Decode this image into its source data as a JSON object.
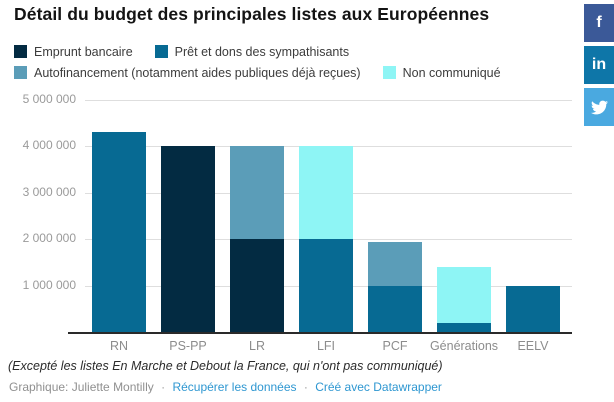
{
  "chart_data": {
    "type": "bar",
    "stacked": true,
    "title": "Détail du budget des principales listes aux Européennes",
    "categories": [
      "RN",
      "PS-PP",
      "LR",
      "LFI",
      "PCF",
      "Générations",
      "EELV"
    ],
    "series": [
      {
        "name": "Emprunt bancaire",
        "color": "#032b42",
        "values": [
          0,
          4000000,
          2000000,
          0,
          0,
          0,
          0
        ]
      },
      {
        "name": "Prêt et dons des sympathisants",
        "color": "#076a93",
        "values": [
          4300000,
          0,
          0,
          2000000,
          1000000,
          200000,
          1000000
        ]
      },
      {
        "name": "Autofinancement (notamment aides publiques déjà reçues)",
        "color": "#5b9db8",
        "values": [
          0,
          0,
          2000000,
          0,
          950000,
          0,
          0
        ]
      },
      {
        "name": "Non communiqué",
        "color": "#8ef5f5",
        "values": [
          0,
          0,
          0,
          2000000,
          0,
          1200000,
          0
        ]
      }
    ],
    "legend_rows": [
      [
        0,
        1
      ],
      [
        2,
        3
      ]
    ],
    "legend_position": "top",
    "grid": true,
    "ylim": [
      0,
      5000000
    ],
    "yticks": [
      {
        "value": 5000000,
        "label": "5 000 000"
      },
      {
        "value": 4000000,
        "label": "4 000 000"
      },
      {
        "value": 3000000,
        "label": "3 000 000"
      },
      {
        "value": 2000000,
        "label": "2 000 000"
      },
      {
        "value": 1000000,
        "label": "1 000 000"
      }
    ],
    "xlabel": "",
    "ylabel": ""
  },
  "footer": {
    "note": "(Excepté les listes En Marche et Debout la France, qui n'ont pas communiqué)",
    "credit_label": "Graphique: Juliette Montilly",
    "separator": "·",
    "links": [
      {
        "label": "Récupérer les données"
      },
      {
        "label": "Créé avec Datawrapper"
      }
    ],
    "link_color": "#2e97d1"
  },
  "share_buttons": [
    {
      "name": "facebook",
      "label": "f",
      "color": "#3b5998"
    },
    {
      "name": "linkedin",
      "label": "in",
      "color": "#0e76a8"
    },
    {
      "name": "twitter",
      "label": "twitter-bird",
      "color": "#4aa9e0"
    }
  ],
  "style_colors": {
    "gridline": "#dedede",
    "axis": "#2a2a2a",
    "ytick_text": "#9a9a9a",
    "xtick_text": "#8c8c8c"
  }
}
